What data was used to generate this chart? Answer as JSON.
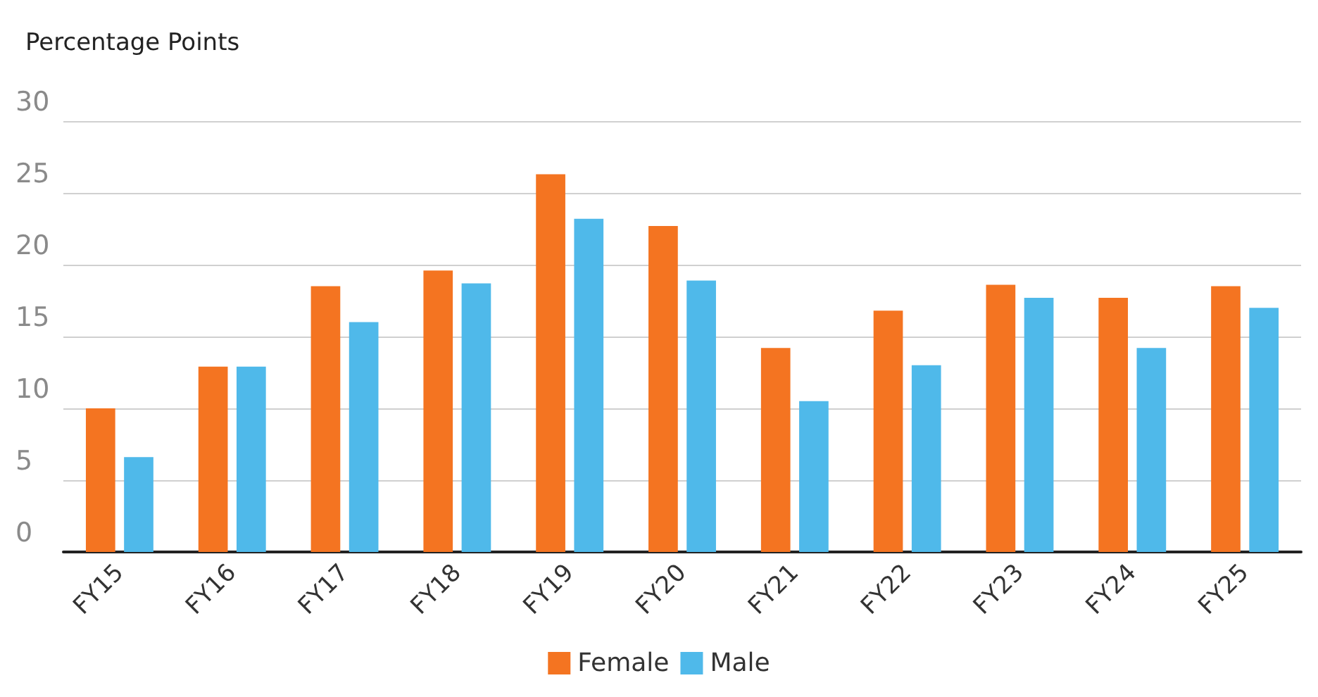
{
  "chart_data": {
    "type": "bar",
    "ylabel": "Percentage Points",
    "categories": [
      "FY15",
      "FY16",
      "FY17",
      "FY18",
      "FY19",
      "FY20",
      "FY21",
      "FY22",
      "FY23",
      "FY24",
      "FY25"
    ],
    "series": [
      {
        "name": "Female",
        "color": "#f47421",
        "values": [
          10.0,
          12.9,
          18.5,
          19.6,
          26.3,
          22.7,
          14.2,
          16.8,
          18.6,
          17.7,
          18.5
        ]
      },
      {
        "name": "Male",
        "color": "#4fb9ea",
        "values": [
          6.6,
          12.9,
          16.0,
          18.7,
          23.2,
          18.9,
          10.5,
          13.0,
          17.7,
          14.2,
          17.0
        ]
      }
    ],
    "ylim": [
      0,
      30
    ],
    "yticks": [
      0,
      5,
      10,
      15,
      20,
      25,
      30
    ],
    "grid": "y",
    "legend": "bottom"
  }
}
